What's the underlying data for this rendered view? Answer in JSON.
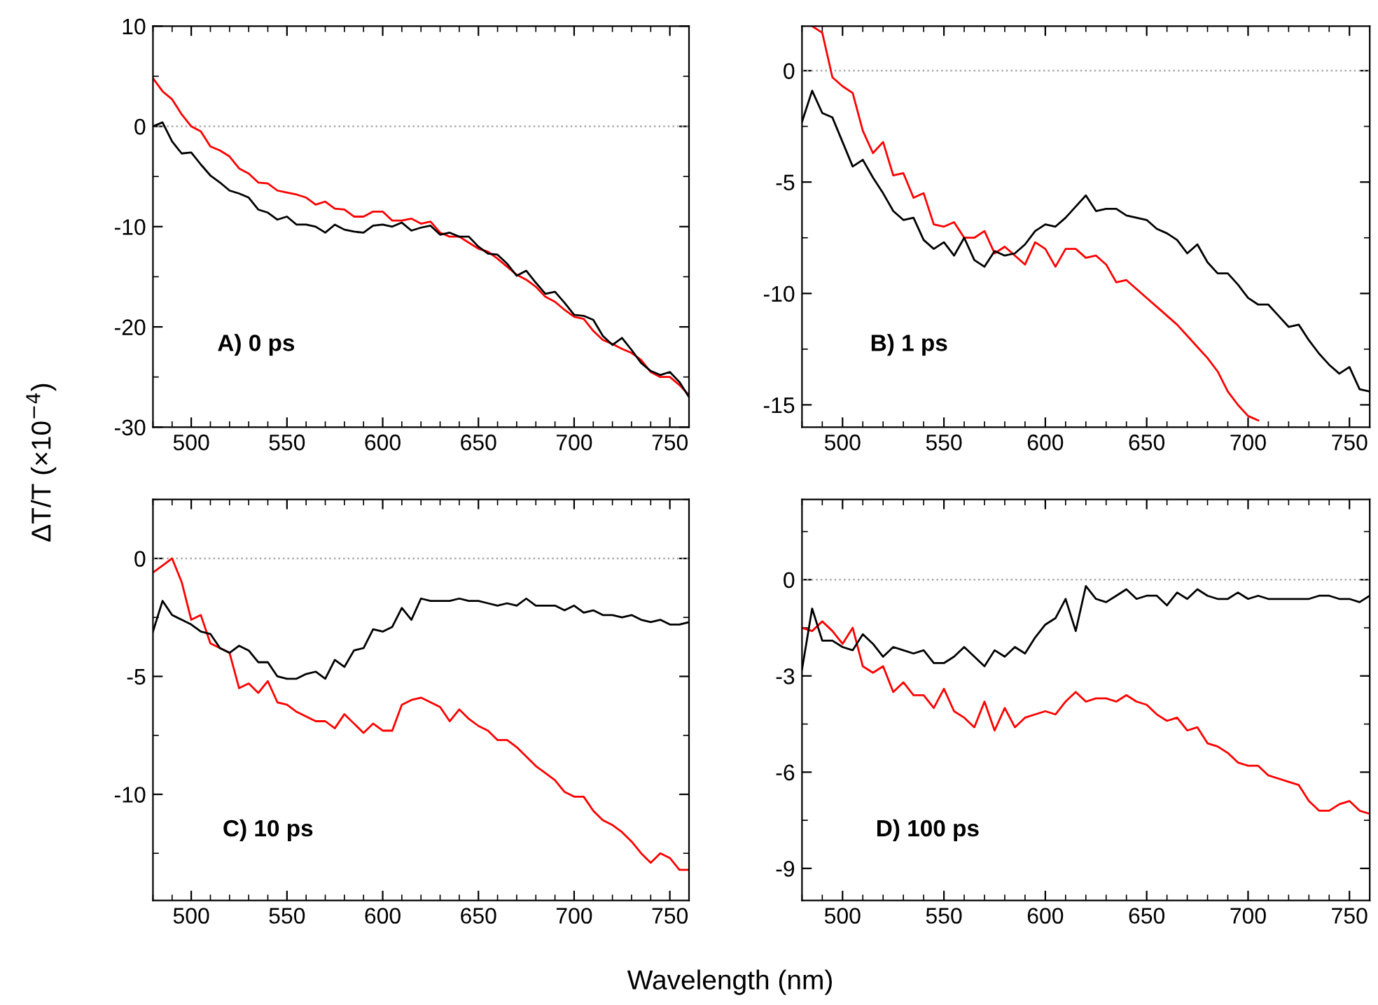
{
  "chart_data": [
    {
      "type": "line",
      "ylabel": "ΔT/T (×10$^{−4}$)",
      "xlabel": "Wavelength (nm)",
      "annotations": [
        "A) 0 ps"
      ],
      "x": [
        480,
        485,
        490,
        495,
        500,
        505,
        510,
        515,
        520,
        525,
        530,
        535,
        540,
        545,
        550,
        555,
        560,
        565,
        570,
        575,
        580,
        585,
        590,
        595,
        600,
        605,
        610,
        615,
        620,
        625,
        630,
        635,
        640,
        645,
        650,
        655,
        660,
        665,
        670,
        675,
        680,
        685,
        690,
        695,
        700,
        705,
        710,
        715,
        720,
        725,
        730,
        735,
        740,
        745,
        750,
        755,
        760
      ],
      "series": [
        {
          "color": "#ff0000",
          "values": [
            4.8,
            3.5,
            2.7,
            1.2,
            0,
            -0.5,
            -2,
            -2.4,
            -3,
            -4.2,
            -4.7,
            -5.6,
            -5.7,
            -6.4,
            -6.6,
            -6.8,
            -7.1,
            -7.8,
            -7.5,
            -8.2,
            -8.3,
            -9,
            -9,
            -8.5,
            -8.5,
            -9.4,
            -9.4,
            -9.2,
            -9.7,
            -9.5,
            -10.6,
            -11,
            -11,
            -11.6,
            -12.2,
            -12.5,
            -13.2,
            -14,
            -14.8,
            -15.3,
            -16,
            -17,
            -17.5,
            -18.3,
            -19,
            -19.2,
            -20.4,
            -21.3,
            -21.7,
            -22.2,
            -22.6,
            -23.3,
            -24.5,
            -25,
            -25,
            -25.8,
            -26.8
          ]
        },
        {
          "color": "#000000",
          "values": [
            0,
            0.4,
            -1.5,
            -2.7,
            -2.6,
            -3.8,
            -4.9,
            -5.6,
            -6.4,
            -6.7,
            -7.1,
            -8.3,
            -8.6,
            -9.3,
            -9,
            -9.8,
            -9.8,
            -10,
            -10.6,
            -9.8,
            -10.3,
            -10.5,
            -10.6,
            -9.9,
            -9.8,
            -10,
            -9.6,
            -10.4,
            -10.1,
            -9.9,
            -10.8,
            -10.6,
            -11,
            -11,
            -12,
            -12.7,
            -12.8,
            -13.7,
            -14.9,
            -14.4,
            -15.6,
            -16.7,
            -16.5,
            -17.6,
            -18.8,
            -18.9,
            -19.3,
            -20.9,
            -21.8,
            -21.1,
            -22.3,
            -23.6,
            -24.4,
            -24.8,
            -24.5,
            -25.5,
            -27
          ]
        }
      ],
      "xlim": [
        480,
        760
      ],
      "xticks": [
        500,
        550,
        600,
        650,
        700,
        750
      ],
      "ylim": [
        -30,
        10
      ],
      "yticks": [
        -30,
        -20,
        -10,
        0,
        10
      ],
      "ref_lines": [
        {
          "axis": "y",
          "value": 0,
          "color": "#aaaaaa",
          "line_style": "dotted"
        }
      ]
    },
    {
      "type": "line",
      "annotations": [
        "B) 1 ps"
      ],
      "x": [
        480,
        485,
        490,
        495,
        500,
        505,
        510,
        515,
        520,
        525,
        530,
        535,
        540,
        545,
        550,
        555,
        560,
        565,
        570,
        575,
        580,
        585,
        590,
        595,
        600,
        605,
        610,
        615,
        620,
        625,
        630,
        635,
        640,
        645,
        650,
        655,
        660,
        665,
        670,
        675,
        680,
        685,
        690,
        695,
        700,
        705,
        710,
        715,
        720,
        725,
        730,
        735,
        740,
        745,
        750,
        755,
        760
      ],
      "series": [
        {
          "color": "#ff0000",
          "values": [
            null,
            2.0,
            1.7,
            -0.3,
            -0.7,
            -1,
            -2.7,
            -3.7,
            -3.2,
            -4.7,
            -4.6,
            -5.7,
            -5.5,
            -6.9,
            -7,
            -6.8,
            -7.5,
            -7.5,
            -7.2,
            -8.2,
            -7.9,
            -8.3,
            -8.7,
            -7.7,
            -8,
            -8.8,
            -8,
            -8,
            -8.4,
            -8.3,
            -8.7,
            -9.5,
            -9.4,
            -9.8,
            -10.2,
            -10.6,
            -11,
            -11.4,
            -11.9,
            -12.4,
            -12.9,
            -13.5,
            -14.4,
            -15,
            -15.5,
            -15.7,
            null,
            null,
            null,
            null,
            null,
            null,
            null,
            null,
            null,
            null,
            null
          ]
        },
        {
          "color": "#000000",
          "values": [
            -2.3,
            -0.9,
            -1.9,
            -2.1,
            -3.2,
            -4.3,
            -4,
            -4.8,
            -5.5,
            -6.3,
            -6.7,
            -6.6,
            -7.6,
            -8,
            -7.7,
            -8.3,
            -7.5,
            -8.5,
            -8.8,
            -8.1,
            -8.3,
            -8.2,
            -7.8,
            -7.2,
            -6.9,
            -7,
            -6.6,
            -6.1,
            -5.6,
            -6.3,
            -6.2,
            -6.2,
            -6.5,
            -6.6,
            -6.7,
            -7.1,
            -7.3,
            -7.6,
            -8.2,
            -7.8,
            -8.6,
            -9.1,
            -9.1,
            -9.6,
            -10.2,
            -10.5,
            -10.5,
            -11,
            -11.5,
            -11.4,
            -12.1,
            -12.7,
            -13.2,
            -13.6,
            -13.3,
            -14.3,
            -14.4
          ]
        }
      ],
      "xlim": [
        480,
        760
      ],
      "xticks": [
        500,
        550,
        600,
        650,
        700,
        750
      ],
      "ylim": [
        -16,
        2
      ],
      "yticks": [
        -15,
        -10,
        -5,
        0
      ],
      "ref_lines": [
        {
          "axis": "y",
          "value": 0,
          "color": "#aaaaaa",
          "line_style": "dotted"
        }
      ]
    },
    {
      "type": "line",
      "annotations": [
        "C) 10 ps"
      ],
      "x": [
        480,
        485,
        490,
        495,
        500,
        505,
        510,
        515,
        520,
        525,
        530,
        535,
        540,
        545,
        550,
        555,
        560,
        565,
        570,
        575,
        580,
        585,
        590,
        595,
        600,
        605,
        610,
        615,
        620,
        625,
        630,
        635,
        640,
        645,
        650,
        655,
        660,
        665,
        670,
        675,
        680,
        685,
        690,
        695,
        700,
        705,
        710,
        715,
        720,
        725,
        730,
        735,
        740,
        745,
        750,
        755,
        760
      ],
      "series": [
        {
          "color": "#ff0000",
          "values": [
            -0.6,
            -0.3,
            0,
            -1,
            -2.6,
            -2.4,
            -3.6,
            -3.8,
            -4,
            -5.5,
            -5.3,
            -5.7,
            -5.2,
            -6.1,
            -6.2,
            -6.5,
            -6.7,
            -6.9,
            -6.9,
            -7.2,
            -6.6,
            -7,
            -7.4,
            -7,
            -7.3,
            -7.3,
            -6.2,
            -6,
            -5.9,
            -6.1,
            -6.3,
            -6.9,
            -6.4,
            -6.8,
            -7.1,
            -7.3,
            -7.7,
            -7.7,
            -8,
            -8.4,
            -8.8,
            -9.1,
            -9.4,
            -9.9,
            -10.1,
            -10.1,
            -10.7,
            -11.1,
            -11.3,
            -11.6,
            -12,
            -12.5,
            -12.9,
            -12.5,
            -12.7,
            -13.2,
            -13.2
          ]
        },
        {
          "color": "#000000",
          "values": [
            -3.1,
            -1.8,
            -2.4,
            -2.6,
            -2.8,
            -3.1,
            -3.2,
            -3.8,
            -4,
            -3.7,
            -3.9,
            -4.4,
            -4.4,
            -5,
            -5.1,
            -5.1,
            -4.9,
            -4.8,
            -5.1,
            -4.3,
            -4.6,
            -3.9,
            -3.8,
            -3,
            -3.1,
            -2.9,
            -2.1,
            -2.6,
            -1.7,
            -1.8,
            -1.8,
            -1.8,
            -1.7,
            -1.8,
            -1.8,
            -1.9,
            -2,
            -1.9,
            -2,
            -1.7,
            -2,
            -2,
            -2,
            -2.2,
            -2,
            -2.3,
            -2.2,
            -2.4,
            -2.4,
            -2.5,
            -2.4,
            -2.6,
            -2.7,
            -2.6,
            -2.8,
            -2.8,
            -2.7
          ]
        }
      ],
      "xlim": [
        480,
        760
      ],
      "xticks": [
        500,
        550,
        600,
        650,
        700,
        750
      ],
      "ylim": [
        -14.5,
        2.5
      ],
      "yticks": [
        -10,
        -5,
        0
      ],
      "ref_lines": [
        {
          "axis": "y",
          "value": 0,
          "color": "#aaaaaa",
          "line_style": "dotted"
        }
      ]
    },
    {
      "type": "line",
      "annotations": [
        "D) 100 ps"
      ],
      "x": [
        480,
        485,
        490,
        495,
        500,
        505,
        510,
        515,
        520,
        525,
        530,
        535,
        540,
        545,
        550,
        555,
        560,
        565,
        570,
        575,
        580,
        585,
        590,
        595,
        600,
        605,
        610,
        615,
        620,
        625,
        630,
        635,
        640,
        645,
        650,
        655,
        660,
        665,
        670,
        675,
        680,
        685,
        690,
        695,
        700,
        705,
        710,
        715,
        720,
        725,
        730,
        735,
        740,
        745,
        750,
        755,
        760
      ],
      "series": [
        {
          "color": "#ff0000",
          "values": [
            -1.5,
            -1.6,
            -1.3,
            -1.6,
            -2,
            -1.5,
            -2.7,
            -2.9,
            -2.7,
            -3.5,
            -3.2,
            -3.6,
            -3.6,
            -4,
            -3.4,
            -4.1,
            -4.3,
            -4.6,
            -3.8,
            -4.7,
            -4,
            -4.6,
            -4.3,
            -4.2,
            -4.1,
            -4.2,
            -3.8,
            -3.5,
            -3.8,
            -3.7,
            -3.7,
            -3.8,
            -3.6,
            -3.8,
            -3.9,
            -4.2,
            -4.4,
            -4.3,
            -4.7,
            -4.6,
            -5.1,
            -5.2,
            -5.4,
            -5.7,
            -5.8,
            -5.8,
            -6.1,
            -6.2,
            -6.3,
            -6.4,
            -6.9,
            -7.2,
            -7.2,
            -7,
            -6.9,
            -7.2,
            -7.3
          ]
        },
        {
          "color": "#000000",
          "values": [
            -2.8,
            -0.9,
            -1.9,
            -1.9,
            -2.1,
            -2.2,
            -1.7,
            -2,
            -2.4,
            -2.1,
            -2.2,
            -2.3,
            -2.2,
            -2.6,
            -2.6,
            -2.4,
            -2.1,
            -2.4,
            -2.7,
            -2.2,
            -2.4,
            -2.1,
            -2.3,
            -1.8,
            -1.4,
            -1.2,
            -0.6,
            -1.6,
            -0.2,
            -0.6,
            -0.7,
            -0.5,
            -0.3,
            -0.6,
            -0.5,
            -0.5,
            -0.8,
            -0.4,
            -0.6,
            -0.3,
            -0.5,
            -0.6,
            -0.6,
            -0.4,
            -0.6,
            -0.5,
            -0.6,
            -0.6,
            -0.6,
            -0.6,
            -0.6,
            -0.5,
            -0.5,
            -0.6,
            -0.6,
            -0.7,
            -0.5
          ]
        }
      ],
      "xlim": [
        480,
        760
      ],
      "xticks": [
        500,
        550,
        600,
        650,
        700,
        750
      ],
      "ylim": [
        -10,
        2.5
      ],
      "yticks": [
        -9,
        -6,
        -3,
        0
      ],
      "ref_lines": [
        {
          "axis": "y",
          "value": 0,
          "color": "#aaaaaa",
          "line_style": "dotted"
        }
      ]
    }
  ]
}
